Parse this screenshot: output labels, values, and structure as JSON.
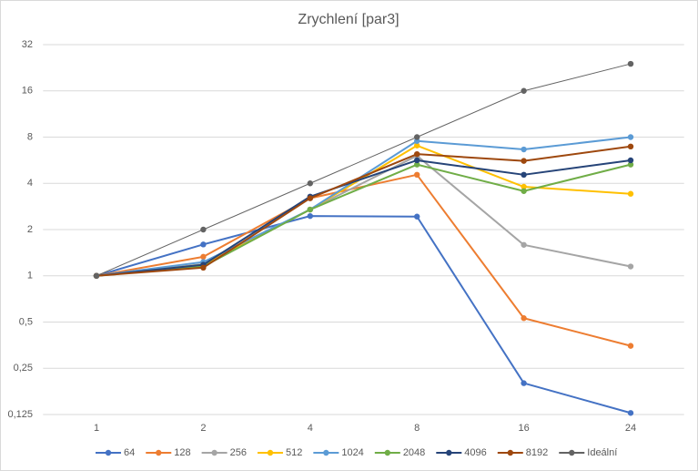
{
  "chart_data": {
    "type": "line",
    "title": "Zrychlení [par3]",
    "categories": [
      "1",
      "2",
      "4",
      "8",
      "16",
      "24"
    ],
    "log_scale_y": true,
    "log_base": 2,
    "grid": true,
    "legend": "bottom",
    "ylim": [
      0.125,
      32
    ],
    "yticks": [
      {
        "value": 0.125,
        "label": "0,125"
      },
      {
        "value": 0.25,
        "label": "0,25"
      },
      {
        "value": 0.5,
        "label": "0,5"
      },
      1,
      2,
      4,
      8,
      16,
      32
    ],
    "series": [
      {
        "name": "64",
        "color": "#4472c4",
        "values": [
          1,
          1.6,
          2.45,
          2.43,
          0.2,
          0.128
        ]
      },
      {
        "name": "128",
        "color": "#ed7d31",
        "values": [
          1,
          1.33,
          3.2,
          4.55,
          0.53,
          0.35
        ]
      },
      {
        "name": "256",
        "color": "#a5a5a5",
        "values": [
          1,
          1.19,
          2.7,
          6.05,
          1.59,
          1.15
        ]
      },
      {
        "name": "512",
        "color": "#ffc000",
        "values": [
          1,
          1.18,
          2.7,
          7.05,
          3.8,
          3.42
        ]
      },
      {
        "name": "1024",
        "color": "#5b9bd5",
        "values": [
          1,
          1.23,
          2.7,
          7.55,
          6.65,
          8.0
        ]
      },
      {
        "name": "2048",
        "color": "#70ad47",
        "values": [
          1,
          1.15,
          2.7,
          5.3,
          3.56,
          5.3
        ]
      },
      {
        "name": "4096",
        "color": "#264478",
        "values": [
          1,
          1.18,
          3.28,
          5.65,
          4.55,
          5.65
        ]
      },
      {
        "name": "8192",
        "color": "#9e480e",
        "values": [
          1,
          1.13,
          3.2,
          6.2,
          5.6,
          6.95
        ]
      },
      {
        "name": "Ideální",
        "color": "#636363",
        "values": [
          1,
          2,
          4,
          8,
          16,
          24
        ]
      }
    ]
  }
}
